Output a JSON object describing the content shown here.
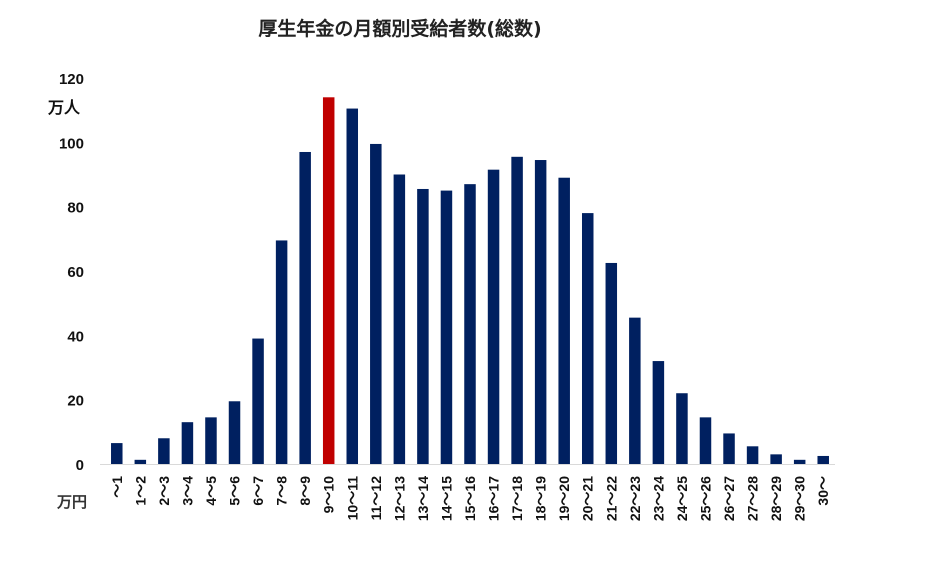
{
  "chart_data": {
    "type": "bar",
    "title": "厚生年金の月額別受給者数(総数)",
    "y_unit": "万人",
    "x_unit": "万円",
    "ylim": [
      0,
      120
    ],
    "y_ticks": [
      0,
      20,
      40,
      60,
      80,
      100,
      120
    ],
    "grid": false,
    "legend": "none",
    "bar_color": "#002060",
    "highlight_color": "#C00000",
    "highlight_category": "9～10",
    "categories": [
      "～1",
      "1～2",
      "2～3",
      "3～4",
      "4～5",
      "5～6",
      "6～7",
      "7～8",
      "8～9",
      "9～10",
      "10～11",
      "11～12",
      "12～13",
      "13～14",
      "14～15",
      "15～16",
      "16～17",
      "17～18",
      "18～19",
      "19～20",
      "20～21",
      "21～22",
      "22～23",
      "23～24",
      "24～25",
      "25～26",
      "26～27",
      "27～28",
      "28～29",
      "29～30",
      "30～"
    ],
    "values": [
      6.5,
      1.3,
      8,
      13,
      14.5,
      19.5,
      39,
      69.5,
      97,
      114,
      110.5,
      99.5,
      90,
      85.5,
      85,
      87,
      91.5,
      95.5,
      94.5,
      89,
      78,
      62.5,
      45.5,
      32,
      22,
      14.5,
      9.5,
      5.5,
      3,
      1.3,
      2.5
    ]
  }
}
